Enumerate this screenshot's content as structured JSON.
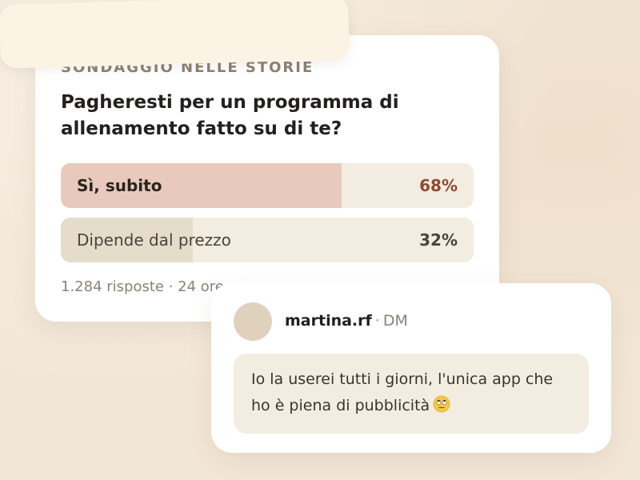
{
  "poll": {
    "eyebrow": "SONDAGGIO NELLE STORIE",
    "question": "Pagheresti per un programma di allenamento fatto su di te?",
    "options": [
      {
        "label": "Sì, subito",
        "percent_text": "68%",
        "share": 0.68
      },
      {
        "label": "Dipende dal prezzo",
        "percent_text": "32%",
        "share": 0.32
      }
    ],
    "meta": "1.284 risposte · 24 ore"
  },
  "dm": {
    "username": "martina.rf",
    "separator": "·",
    "type": "DM",
    "message": "Io la userei tutti i giorni, l'unica app che ho è piena di pubblicità",
    "emoji": "eye-roll-emoji-icon"
  },
  "colors": {
    "background": "#f2e6d6",
    "card": "#ffffff",
    "option_a_fill": "#e8c9bb",
    "option_a_percent": "#8f4a33",
    "option_b_fill": "#e5dccb",
    "option_track": "#f3ece0",
    "eyebrow": "#8b8170"
  }
}
